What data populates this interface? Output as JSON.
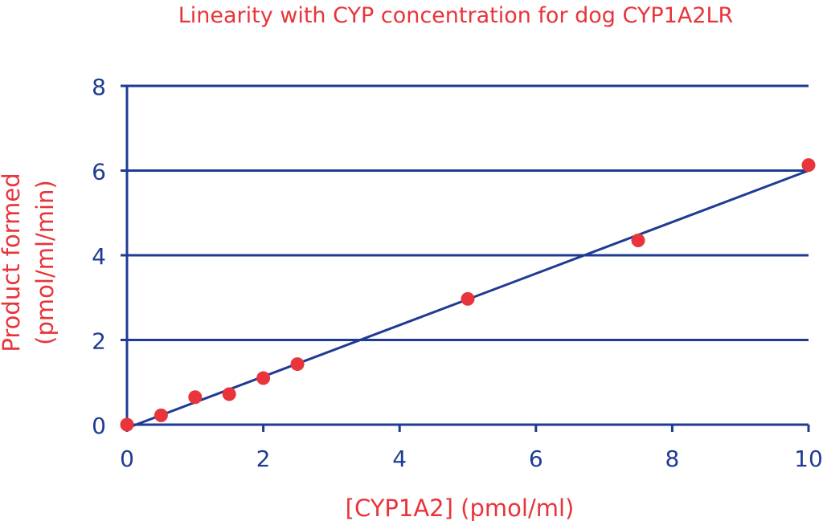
{
  "chart_data": {
    "type": "scatter",
    "title": "Linearity with CYP concentration for dog CYP1A2LR",
    "xlabel": "[CYP1A2] (pmol/ml)",
    "ylabel_lines": [
      "Product formed",
      "(pmol/ml/min)"
    ],
    "xlim": [
      0,
      10
    ],
    "ylim": [
      0,
      8
    ],
    "x_ticks": [
      0,
      2,
      4,
      6,
      8,
      10
    ],
    "y_ticks": [
      0,
      2,
      4,
      6,
      8
    ],
    "grid": "horizontal",
    "series": [
      {
        "points": [
          [
            0,
            0.0
          ],
          [
            0.5,
            0.22
          ],
          [
            1.0,
            0.65
          ],
          [
            1.5,
            0.72
          ],
          [
            2.0,
            1.1
          ],
          [
            2.5,
            1.43
          ],
          [
            5.0,
            2.97
          ],
          [
            7.5,
            4.35
          ],
          [
            10.0,
            6.13
          ]
        ],
        "trendline": [
          [
            0,
            -0.08
          ],
          [
            10,
            6.0
          ]
        ]
      }
    ],
    "colors": {
      "axis": "#1f3b93",
      "grid": "#1f3b93",
      "line": "#1f3b93",
      "point": "#e8343a",
      "text": "#e8343a"
    }
  }
}
